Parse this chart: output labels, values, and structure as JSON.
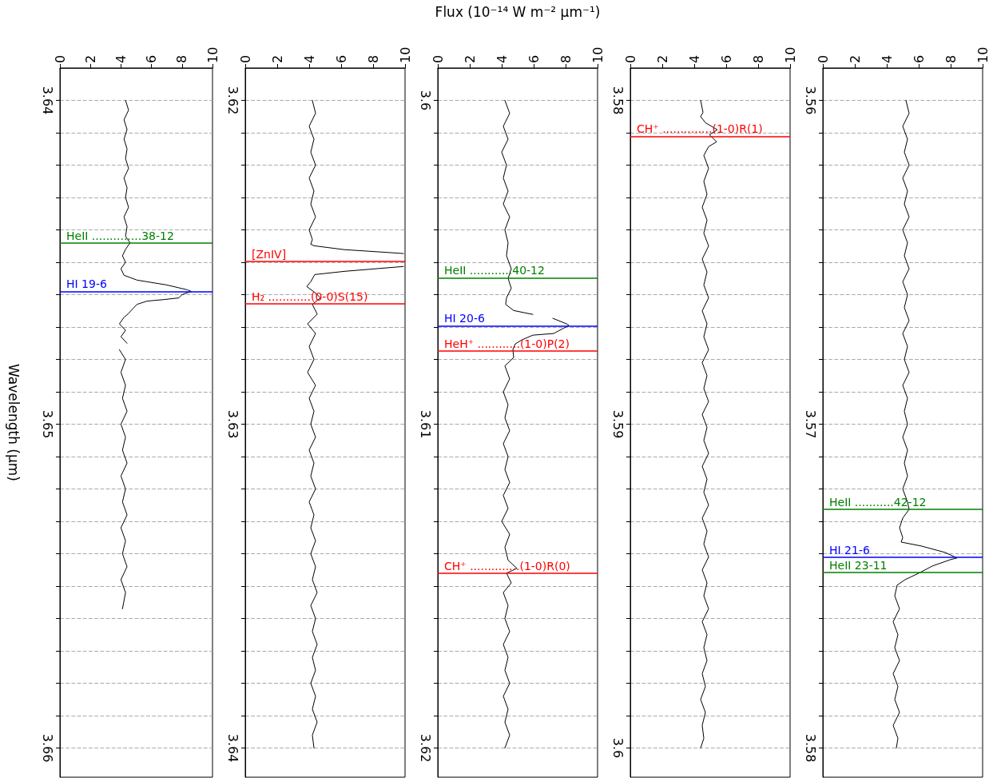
{
  "chart_data": [
    {
      "type": "line",
      "ylabel": "Wavelength (μm)",
      "xlim": [
        0,
        10
      ],
      "xticks": [
        0,
        2,
        4,
        6,
        8,
        10
      ],
      "ylim": [
        3.6609,
        3.639
      ],
      "yticks": [
        3.64,
        {
          "value": 3.641,
          "label": null
        },
        {
          "value": 3.642,
          "label": null
        },
        {
          "value": 3.643,
          "label": null
        },
        {
          "value": 3.644,
          "label": null
        },
        {
          "value": 3.645,
          "label": null
        },
        {
          "value": 3.646,
          "label": null
        },
        {
          "value": 3.647,
          "label": null
        },
        {
          "value": 3.648,
          "label": null
        },
        {
          "value": 3.649,
          "label": null
        },
        3.65,
        {
          "value": 3.651,
          "label": null
        },
        {
          "value": 3.652,
          "label": null
        },
        {
          "value": 3.653,
          "label": null
        },
        {
          "value": 3.654,
          "label": null
        },
        {
          "value": 3.655,
          "label": null
        },
        {
          "value": 3.656,
          "label": null
        },
        {
          "value": 3.657,
          "label": null
        },
        {
          "value": 3.658,
          "label": null
        },
        {
          "value": 3.659,
          "label": null
        },
        3.66
      ],
      "grid": "y",
      "series": [
        {
          "color": "#000000",
          "x": [
            4.3,
            4.5,
            4.2,
            4.4,
            4.2,
            4.4,
            4.3,
            4.5,
            4.2,
            4.4,
            4.3,
            4.5,
            4.2,
            4.4,
            4.3,
            4.6,
            4.3,
            4.1,
            4.3,
            4.0,
            4.2,
            5.05,
            5.7,
            7.0,
            8.35,
            8.6,
            8.0,
            7.8,
            6.85,
            5.7,
            5.05,
            4.45,
            4.2,
            3.9,
            4.3,
            4.0,
            4.4,
            null,
            3.9,
            4.3,
            4.0,
            4.3,
            4.1,
            4.4,
            4.0,
            4.3,
            4.1,
            4.4,
            4.0,
            4.3,
            4.1,
            4.4,
            4.0,
            4.3,
            4.1,
            4.4,
            4.0,
            4.3,
            4.1
          ],
          "values": [
            3.64,
            3.6403,
            3.6406,
            3.6409,
            3.6412,
            3.6415,
            3.6418,
            3.6421,
            3.6424,
            3.6427,
            3.643,
            3.6433,
            3.6436,
            3.6439,
            3.6442,
            3.6444,
            3.6446,
            3.6448,
            3.645,
            3.6452,
            3.6454,
            3.64555,
            3.6456,
            3.6457,
            3.64585,
            3.6459,
            3.646,
            3.6461,
            3.64615,
            3.6462,
            3.6463,
            3.6466,
            3.6467,
            3.6469,
            3.6471,
            3.6473,
            3.6475,
            null,
            3.6477,
            3.648,
            3.6484,
            3.6488,
            3.6492,
            3.6496,
            3.65,
            3.6504,
            3.6508,
            3.6512,
            3.6516,
            3.652,
            3.6524,
            3.6528,
            3.6532,
            3.6536,
            3.654,
            3.6544,
            3.6548,
            3.6552,
            3.6557
          ]
        }
      ],
      "ref_lines": [
        {
          "axis": "y",
          "value": 3.6444,
          "label": "HeII ..............38-12",
          "color": "#008000"
        },
        {
          "axis": "y",
          "value": 3.6459,
          "label": "HI 19-6",
          "color": "#0000ff"
        }
      ]
    },
    {
      "type": "line",
      "xlim": [
        0,
        10
      ],
      "xticks": [
        0,
        2,
        4,
        6,
        8,
        10
      ],
      "ylim": [
        3.6409,
        3.619
      ],
      "yticks": [
        3.62,
        {
          "value": 3.621,
          "label": null
        },
        {
          "value": 3.622,
          "label": null
        },
        {
          "value": 3.623,
          "label": null
        },
        {
          "value": 3.624,
          "label": null
        },
        {
          "value": 3.625,
          "label": null
        },
        {
          "value": 3.626,
          "label": null
        },
        {
          "value": 3.627,
          "label": null
        },
        {
          "value": 3.628,
          "label": null
        },
        {
          "value": 3.629,
          "label": null
        },
        3.63,
        {
          "value": 3.631,
          "label": null
        },
        {
          "value": 3.632,
          "label": null
        },
        {
          "value": 3.633,
          "label": null
        },
        {
          "value": 3.634,
          "label": null
        },
        {
          "value": 3.635,
          "label": null
        },
        {
          "value": 3.636,
          "label": null
        },
        {
          "value": 3.637,
          "label": null
        },
        {
          "value": 3.638,
          "label": null
        },
        {
          "value": 3.639,
          "label": null
        },
        3.64
      ],
      "grid": "y",
      "series": [
        {
          "color": "#000000",
          "x": [
            4.2,
            4.4,
            4.0,
            4.3,
            4.1,
            4.4,
            4.0,
            4.3,
            4.1,
            4.4,
            4.0,
            4.2,
            4.1,
            4.3,
            6.2,
            8.7,
            9.9,
            null,
            9.9,
            6.2,
            4.35,
            4.1,
            3.85,
            4.45,
            4.7,
            4.2,
            4.5,
            3.9,
            4.4,
            4.0,
            4.3,
            3.9,
            4.4,
            4.0,
            4.3,
            4.1,
            4.4,
            4.0,
            4.3,
            4.1,
            4.4,
            4.0,
            4.3,
            4.1,
            4.4,
            4.1,
            4.4,
            4.2,
            4.5,
            4.1,
            4.4,
            4.2,
            4.5,
            4.2,
            4.4,
            4.1,
            4.4,
            4.2,
            4.5,
            4.2,
            4.3
          ],
          "values": [
            3.62,
            3.6204,
            3.6208,
            3.6212,
            3.6216,
            3.622,
            3.6224,
            3.6228,
            3.6232,
            3.6236,
            3.624,
            3.6243,
            3.62444,
            3.62449,
            3.62461,
            3.62469,
            3.62473,
            null,
            3.62513,
            3.62528,
            3.62538,
            3.6256,
            3.62575,
            3.62597,
            3.6261,
            3.6263,
            3.6266,
            3.6269,
            3.6272,
            3.6276,
            3.628,
            3.6284,
            3.6288,
            3.6292,
            3.6296,
            3.63,
            3.6304,
            3.6308,
            3.6312,
            3.6316,
            3.632,
            3.6324,
            3.6328,
            3.6332,
            3.6336,
            3.634,
            3.6344,
            3.6348,
            3.6352,
            3.6356,
            3.636,
            3.6364,
            3.6368,
            3.6372,
            3.6376,
            3.638,
            3.6384,
            3.6388,
            3.6392,
            3.6396,
            3.64
          ]
        }
      ],
      "ref_lines": [
        {
          "axis": "y",
          "value": 3.62497,
          "label": "[ZnIV]",
          "color": "#ff0000"
        },
        {
          "axis": "y",
          "value": 3.62628,
          "label": "H₂ ............(0-0)S(15)",
          "color": "#ff0000"
        }
      ]
    },
    {
      "type": "line",
      "xlabel": "Flux (10⁻¹⁴ W m⁻² μm⁻¹)",
      "xlim": [
        0,
        10
      ],
      "xticks": [
        0,
        2,
        4,
        6,
        8,
        10
      ],
      "ylim": [
        3.6209,
        3.599
      ],
      "yticks": [
        3.6,
        {
          "value": 3.601,
          "label": null
        },
        {
          "value": 3.602,
          "label": null
        },
        {
          "value": 3.603,
          "label": null
        },
        {
          "value": 3.604,
          "label": null
        },
        {
          "value": 3.605,
          "label": null
        },
        {
          "value": 3.606,
          "label": null
        },
        {
          "value": 3.607,
          "label": null
        },
        {
          "value": 3.608,
          "label": null
        },
        {
          "value": 3.609,
          "label": null
        },
        3.61,
        {
          "value": 3.611,
          "label": null
        },
        {
          "value": 3.612,
          "label": null
        },
        {
          "value": 3.613,
          "label": null
        },
        {
          "value": 3.614,
          "label": null
        },
        {
          "value": 3.615,
          "label": null
        },
        {
          "value": 3.616,
          "label": null
        },
        {
          "value": 3.617,
          "label": null
        },
        {
          "value": 3.618,
          "label": null
        },
        {
          "value": 3.619,
          "label": null
        },
        3.62
      ],
      "grid": "y",
      "series": [
        {
          "color": "#000000",
          "x": [
            4.2,
            4.5,
            4.1,
            4.4,
            4.0,
            4.3,
            4.1,
            4.4,
            4.1,
            4.5,
            4.2,
            4.4,
            4.3,
            4.6,
            4.4,
            4.6,
            4.3,
            4.25,
            4.75,
            5.95,
            null,
            7.2,
            8.1,
            8.2,
            7.25,
            5.95,
            5.25,
            4.85,
            4.7,
            4.75,
            4.2,
            4.5,
            4.1,
            4.4,
            4.2,
            4.5,
            4.1,
            4.4,
            4.2,
            4.5,
            4.1,
            4.4,
            4.0,
            4.5,
            4.2,
            4.4,
            4.95,
            4.3,
            4.6,
            4.1,
            4.4,
            4.2,
            4.5,
            4.1,
            4.4,
            4.2,
            4.5,
            4.1,
            4.4,
            4.2,
            4.5,
            4.2
          ],
          "values": [
            3.6,
            3.6004,
            3.6008,
            3.6012,
            3.6016,
            3.602,
            3.6024,
            3.6028,
            3.6032,
            3.6036,
            3.604,
            3.6044,
            3.6048,
            3.6052,
            3.6055,
            3.6058,
            3.6061,
            3.6063,
            3.60649,
            3.60661,
            null,
            3.60673,
            3.60691,
            3.60695,
            3.6072,
            3.60725,
            3.6074,
            3.60752,
            3.60769,
            3.60794,
            3.6082,
            3.6086,
            3.609,
            3.6094,
            3.6098,
            3.6102,
            3.6106,
            3.611,
            3.6114,
            3.6118,
            3.6122,
            3.6126,
            3.613,
            3.6134,
            3.6138,
            3.6142,
            3.61445,
            3.6146,
            3.6149,
            3.6152,
            3.6156,
            3.616,
            3.6164,
            3.6168,
            3.6172,
            3.6176,
            3.618,
            3.6184,
            3.6188,
            3.6192,
            3.6196,
            3.62
          ]
        }
      ],
      "ref_lines": [
        {
          "axis": "y",
          "value": 3.60548,
          "label": "HeII ............40-12",
          "color": "#008000"
        },
        {
          "axis": "y",
          "value": 3.60696,
          "label": "HI 20-6",
          "color": "#0000ff"
        },
        {
          "axis": "y",
          "value": 3.60774,
          "label": "HeH⁺ ............(1-0)P(2)",
          "color": "#ff0000"
        },
        {
          "axis": "y",
          "value": 3.61461,
          "label": "CH⁺ ..............(1-0)R(0)",
          "color": "#ff0000"
        }
      ]
    },
    {
      "type": "line",
      "xlim": [
        0,
        10
      ],
      "xticks": [
        0,
        2,
        4,
        6,
        8,
        10
      ],
      "ylim": [
        3.6009,
        3.579
      ],
      "yticks": [
        3.58,
        {
          "value": 3.581,
          "label": null
        },
        {
          "value": 3.582,
          "label": null
        },
        {
          "value": 3.583,
          "label": null
        },
        {
          "value": 3.584,
          "label": null
        },
        {
          "value": 3.585,
          "label": null
        },
        {
          "value": 3.586,
          "label": null
        },
        {
          "value": 3.587,
          "label": null
        },
        {
          "value": 3.588,
          "label": null
        },
        {
          "value": 3.589,
          "label": null
        },
        3.59,
        {
          "value": 3.591,
          "label": null
        },
        {
          "value": 3.592,
          "label": null
        },
        {
          "value": 3.593,
          "label": null
        },
        {
          "value": 3.594,
          "label": null
        },
        {
          "value": 3.595,
          "label": null
        },
        {
          "value": 3.596,
          "label": null
        },
        {
          "value": 3.597,
          "label": null
        },
        {
          "value": 3.598,
          "label": null
        },
        {
          "value": 3.599,
          "label": null
        },
        3.6
      ],
      "grid": "y",
      "series": [
        {
          "color": "#000000",
          "x": [
            4.4,
            4.55,
            4.4,
            4.7,
            5.45,
            4.95,
            5.4,
            4.9,
            4.6,
            4.9,
            4.6,
            4.8,
            4.5,
            4.8,
            4.6,
            4.9,
            4.5,
            4.8,
            4.6,
            4.9,
            4.5,
            4.8,
            4.6,
            4.9,
            4.5,
            4.8,
            4.6,
            4.9,
            4.5,
            4.8,
            4.6,
            4.9,
            4.5,
            4.8,
            4.6,
            4.9,
            4.5,
            4.8,
            4.6,
            4.9,
            4.5,
            4.8,
            4.6,
            4.9,
            4.5,
            4.8,
            4.6,
            4.8,
            4.5,
            4.7,
            4.4,
            4.7,
            4.5,
            4.6,
            4.4
          ],
          "values": [
            3.58,
            3.58037,
            3.5805,
            3.58069,
            3.58091,
            3.58106,
            3.58128,
            3.58143,
            3.5817,
            3.5821,
            3.5825,
            3.5829,
            3.5833,
            3.5837,
            3.5841,
            3.5845,
            3.5849,
            3.5853,
            3.5857,
            3.5861,
            3.5865,
            3.5869,
            3.5873,
            3.5877,
            3.5881,
            3.5885,
            3.5889,
            3.5893,
            3.5897,
            3.5901,
            3.5905,
            3.5909,
            3.5913,
            3.5917,
            3.5921,
            3.5925,
            3.5929,
            3.5933,
            3.5937,
            3.5941,
            3.5945,
            3.5949,
            3.5953,
            3.5957,
            3.5961,
            3.5965,
            3.5969,
            3.5973,
            3.5977,
            3.5981,
            3.5985,
            3.5989,
            3.5993,
            3.5997,
            3.6
          ]
        }
      ],
      "ref_lines": [
        {
          "axis": "y",
          "value": 3.58111,
          "label": "CH⁺ ..............(1-0)R(1)",
          "color": "#ff0000"
        }
      ]
    },
    {
      "type": "line",
      "xlim": [
        0,
        10
      ],
      "xticks": [
        0,
        2,
        4,
        6,
        8,
        10
      ],
      "ylim": [
        3.5809,
        3.559
      ],
      "yticks": [
        3.56,
        {
          "value": 3.561,
          "label": null
        },
        {
          "value": 3.562,
          "label": null
        },
        {
          "value": 3.563,
          "label": null
        },
        {
          "value": 3.564,
          "label": null
        },
        {
          "value": 3.565,
          "label": null
        },
        {
          "value": 3.566,
          "label": null
        },
        {
          "value": 3.567,
          "label": null
        },
        {
          "value": 3.568,
          "label": null
        },
        {
          "value": 3.569,
          "label": null
        },
        3.57,
        {
          "value": 3.571,
          "label": null
        },
        {
          "value": 3.572,
          "label": null
        },
        {
          "value": 3.573,
          "label": null
        },
        {
          "value": 3.574,
          "label": null
        },
        {
          "value": 3.575,
          "label": null
        },
        {
          "value": 3.576,
          "label": null
        },
        {
          "value": 3.577,
          "label": null
        },
        {
          "value": 3.578,
          "label": null
        },
        {
          "value": 3.579,
          "label": null
        },
        3.58
      ],
      "grid": "y",
      "series": [
        {
          "color": "#000000",
          "x": [
            5.2,
            5.4,
            5.0,
            5.3,
            5.1,
            5.4,
            5.0,
            5.3,
            5.1,
            5.4,
            5.0,
            5.3,
            5.1,
            5.4,
            5.0,
            5.3,
            5.1,
            5.4,
            5.0,
            5.3,
            5.1,
            5.4,
            5.0,
            5.3,
            5.1,
            5.3,
            5.0,
            5.3,
            5.1,
            5.3,
            5.0,
            5.3,
            5.4,
            5.0,
            4.8,
            5.0,
            4.9,
            6.15,
            7.65,
            8.4,
            8.0,
            6.85,
            6.0,
            5.15,
            4.65,
            4.5,
            4.8,
            4.4,
            4.7,
            4.5,
            4.8,
            4.4,
            4.7,
            4.5,
            4.8,
            4.4,
            4.7,
            4.6
          ],
          "values": [
            3.56,
            3.5604,
            3.5608,
            3.5612,
            3.5616,
            3.562,
            3.5624,
            3.5628,
            3.5632,
            3.5636,
            3.564,
            3.5644,
            3.5648,
            3.5652,
            3.5656,
            3.566,
            3.5664,
            3.5668,
            3.5672,
            3.5676,
            3.568,
            3.5684,
            3.5688,
            3.5692,
            3.5696,
            3.57,
            3.5704,
            3.5708,
            3.5712,
            3.5716,
            3.572,
            3.5724,
            3.57263,
            3.5729,
            3.5732,
            3.5735,
            3.57364,
            3.57376,
            3.57396,
            3.57413,
            3.57418,
            3.57438,
            3.5746,
            3.5748,
            3.57497,
            3.5753,
            3.5757,
            3.5761,
            3.5765,
            3.5769,
            3.5773,
            3.5777,
            3.5781,
            3.5785,
            3.5789,
            3.5793,
            3.5797,
            3.58
          ]
        }
      ],
      "ref_lines": [
        {
          "axis": "y",
          "value": 3.57263,
          "label": "HeII ...........42-12",
          "color": "#008000"
        },
        {
          "axis": "y",
          "value": 3.5741,
          "label": "HI 21-6",
          "color": "#0000ff"
        },
        {
          "axis": "y",
          "value": 3.57457,
          "label": "HeII 23-11",
          "color": "#008000"
        }
      ]
    }
  ]
}
